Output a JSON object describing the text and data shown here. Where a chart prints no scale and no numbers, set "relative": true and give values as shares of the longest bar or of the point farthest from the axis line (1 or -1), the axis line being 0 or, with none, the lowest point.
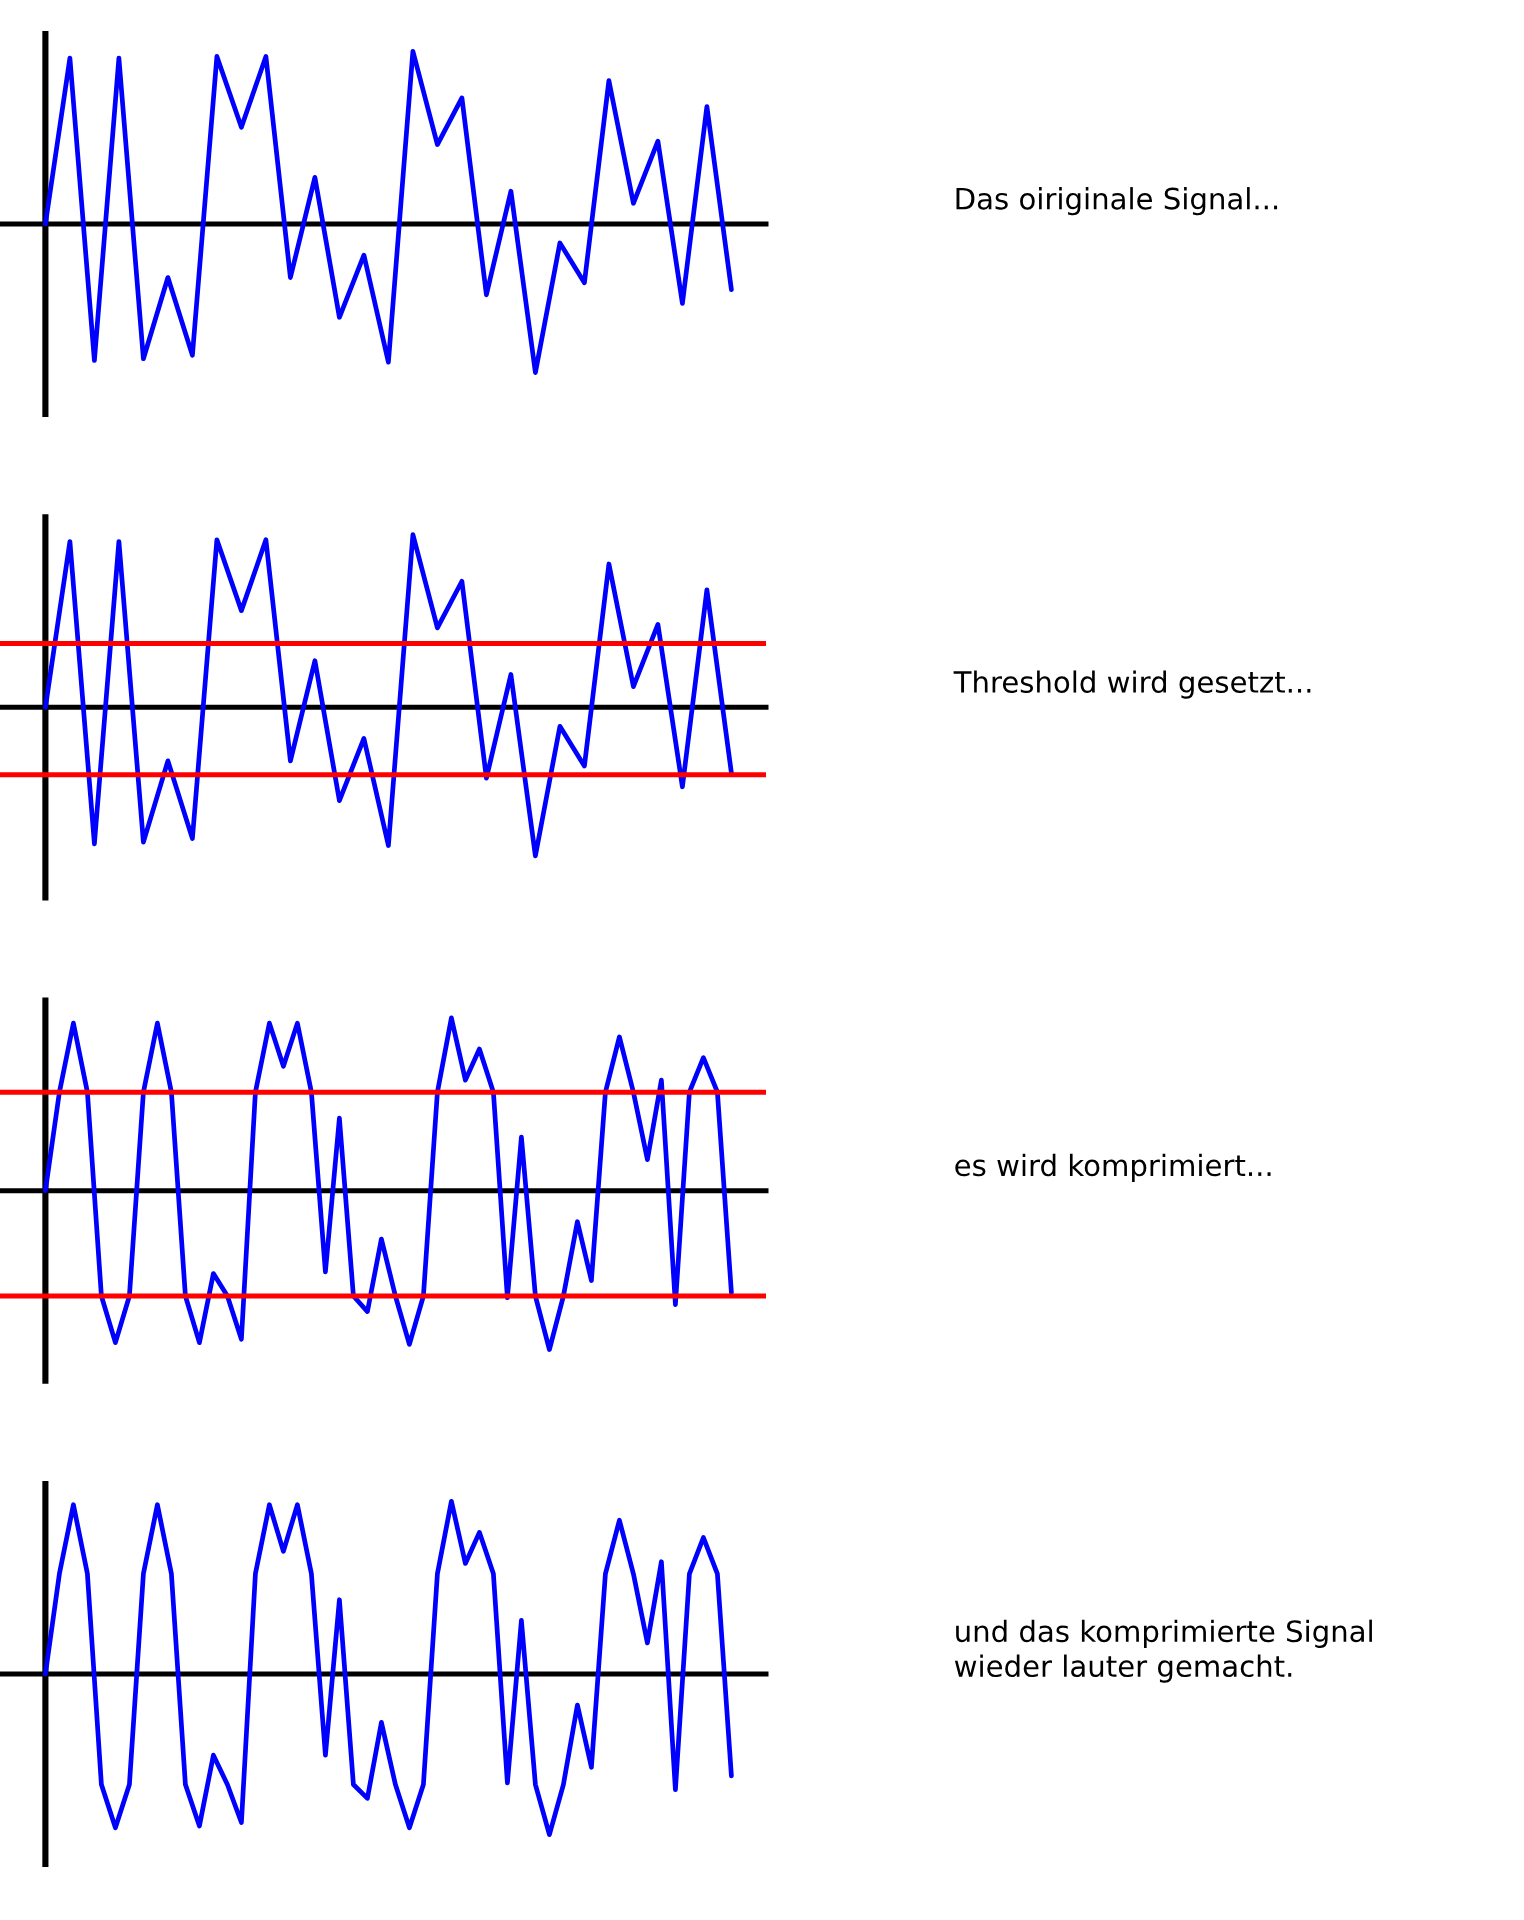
{
  "chart_data": [
    {
      "type": "line",
      "relative": true,
      "color": "#0000ff",
      "tick_labels": false,
      "categories": [
        null,
        null,
        null,
        null,
        null,
        null,
        null,
        null,
        null,
        null,
        null,
        null,
        null,
        null,
        null,
        null,
        null,
        null,
        null,
        null,
        null,
        null,
        null,
        null,
        null,
        null,
        null,
        null,
        null
      ],
      "values": [
        0,
        0.96,
        -0.79,
        0.96,
        -0.78,
        -0.31,
        -0.76,
        0.97,
        0.56,
        0.97,
        -0.31,
        0.27,
        -0.54,
        -0.18,
        -0.8,
        1.0,
        0.46,
        0.73,
        -0.41,
        0.19,
        -0.86,
        -0.11,
        -0.34,
        0.83,
        0.12,
        0.48,
        -0.46,
        0.68,
        -0.38
      ],
      "annotations": [
        "Das oiriginale Signal..."
      ]
    },
    {
      "type": "line",
      "relative": true,
      "color": "#0000ff",
      "tick_labels": false,
      "categories": [
        null,
        null,
        null,
        null,
        null,
        null,
        null,
        null,
        null,
        null,
        null,
        null,
        null,
        null,
        null,
        null,
        null,
        null,
        null,
        null,
        null,
        null,
        null,
        null,
        null,
        null,
        null,
        null,
        null
      ],
      "values": [
        0,
        0.96,
        -0.79,
        0.96,
        -0.78,
        -0.31,
        -0.76,
        0.97,
        0.56,
        0.97,
        -0.31,
        0.27,
        -0.54,
        -0.18,
        -0.8,
        1.0,
        0.46,
        0.73,
        -0.41,
        0.19,
        -0.86,
        -0.11,
        -0.34,
        0.83,
        0.12,
        0.48,
        -0.46,
        0.68,
        -0.38
      ],
      "ref_lines": [
        {
          "axis": "y",
          "value": 0.37,
          "color": "#ff0000"
        },
        {
          "axis": "y",
          "value": -0.39,
          "color": "#ff0000"
        }
      ],
      "annotations": [
        "Threshold wird gesetzt..."
      ]
    },
    {
      "type": "line",
      "relative": true,
      "color": "#0000ff",
      "tick_labels": false,
      "categories": [
        null,
        null,
        null,
        null,
        null,
        null,
        null,
        null,
        null,
        null,
        null,
        null,
        null,
        null,
        null,
        null,
        null,
        null,
        null,
        null,
        null,
        null,
        null,
        null,
        null,
        null,
        null,
        null,
        null,
        null,
        null,
        null,
        null,
        null,
        null,
        null,
        null,
        null,
        null,
        null,
        null,
        null,
        null,
        null,
        null,
        null,
        null,
        null,
        null,
        null
      ],
      "values": [
        0,
        0.57,
        0.97,
        0.57,
        -0.61,
        -0.88,
        -0.61,
        0.57,
        0.97,
        0.57,
        -0.61,
        -0.88,
        -0.48,
        -0.61,
        -0.86,
        0.57,
        0.97,
        0.72,
        0.97,
        0.57,
        -0.47,
        0.42,
        -0.61,
        -0.7,
        -0.28,
        -0.61,
        -0.89,
        -0.61,
        0.57,
        1.0,
        0.64,
        0.82,
        0.57,
        -0.62,
        0.31,
        -0.61,
        -0.92,
        -0.61,
        -0.18,
        -0.52,
        0.57,
        0.89,
        0.57,
        0.18,
        0.64,
        -0.66,
        0.57,
        0.77,
        0.57,
        -0.59
      ],
      "ref_lines": [
        {
          "axis": "y",
          "value": 0.57,
          "color": "#ff0000"
        },
        {
          "axis": "y",
          "value": -0.61,
          "color": "#ff0000"
        }
      ],
      "annotations": [
        "es wird komprimiert..."
      ]
    },
    {
      "type": "line",
      "relative": true,
      "color": "#0000ff",
      "tick_labels": false,
      "categories": [
        null,
        null,
        null,
        null,
        null,
        null,
        null,
        null,
        null,
        null,
        null,
        null,
        null,
        null,
        null,
        null,
        null,
        null,
        null,
        null,
        null,
        null,
        null,
        null,
        null,
        null,
        null,
        null,
        null,
        null,
        null,
        null,
        null,
        null,
        null,
        null,
        null,
        null,
        null,
        null,
        null,
        null,
        null,
        null,
        null,
        null,
        null,
        null,
        null,
        null
      ],
      "values": [
        0,
        0.58,
        0.98,
        0.58,
        -0.64,
        -0.89,
        -0.64,
        0.58,
        0.98,
        0.58,
        -0.64,
        -0.88,
        -0.47,
        -0.64,
        -0.86,
        0.58,
        0.98,
        0.71,
        0.98,
        0.58,
        -0.47,
        0.43,
        -0.64,
        -0.72,
        -0.28,
        -0.64,
        -0.89,
        -0.64,
        0.58,
        1.0,
        0.64,
        0.82,
        0.58,
        -0.63,
        0.31,
        -0.64,
        -0.93,
        -0.64,
        -0.18,
        -0.54,
        0.58,
        0.89,
        0.58,
        0.18,
        0.65,
        -0.67,
        0.58,
        0.79,
        0.58,
        -0.59
      ],
      "annotations": [
        "und das komprimierte Signal\nwieder lauter gemacht."
      ]
    }
  ]
}
